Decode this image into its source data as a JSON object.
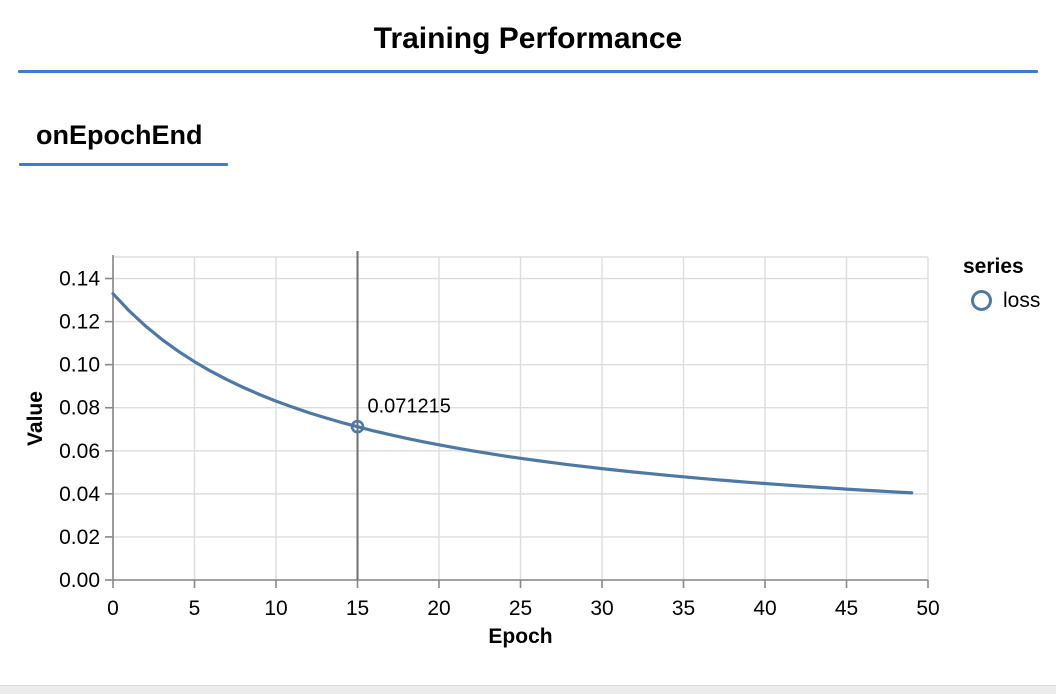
{
  "header": {
    "title": "Training Performance"
  },
  "section": {
    "heading": "onEpochEnd"
  },
  "colors": {
    "accent_rule": "#3d79d8",
    "line": "#4e79a7",
    "grid": "#dddddd",
    "axis": "#888888",
    "highlight_rule": "#6e6e6e",
    "text": "#000000"
  },
  "chart_data": {
    "type": "line",
    "title": "onEpochEnd",
    "xlabel": "Epoch",
    "ylabel": "Value",
    "xlim": [
      0,
      50
    ],
    "ylim": [
      0,
      0.15
    ],
    "xticks": [
      0,
      5,
      10,
      15,
      20,
      25,
      30,
      35,
      40,
      45,
      50
    ],
    "xtick_labels": [
      "0",
      "5",
      "10",
      "15",
      "20",
      "25",
      "30",
      "35",
      "40",
      "45",
      "50"
    ],
    "yticks": [
      0,
      0.02,
      0.04,
      0.06,
      0.08,
      0.1,
      0.12,
      0.14
    ],
    "ytick_labels": [
      "0.00",
      "0.02",
      "0.04",
      "0.06",
      "0.08",
      "0.10",
      "0.12",
      "0.14"
    ],
    "grid": true,
    "legend": {
      "title": "series",
      "position": "right",
      "items": [
        {
          "label": "loss",
          "marker": "circle"
        }
      ]
    },
    "series": [
      {
        "name": "loss",
        "x": [
          0,
          1,
          2,
          3,
          4,
          5,
          6,
          7,
          8,
          9,
          10,
          11,
          12,
          13,
          14,
          15,
          16,
          17,
          18,
          19,
          20,
          21,
          22,
          23,
          24,
          25,
          26,
          27,
          28,
          29,
          30,
          31,
          32,
          33,
          34,
          35,
          36,
          37,
          38,
          39,
          40,
          41,
          42,
          43,
          44,
          45,
          46,
          47,
          48,
          49
        ],
        "y": [
          0.132973,
          0.124941,
          0.117929,
          0.111754,
          0.106275,
          0.10138,
          0.096981,
          0.093006,
          0.089397,
          0.086104,
          0.083089,
          0.080318,
          0.077762,
          0.075397,
          0.073203,
          0.071215,
          0.069256,
          0.067476,
          0.065807,
          0.06424,
          0.062767,
          0.061378,
          0.060066,
          0.058827,
          0.057652,
          0.056539,
          0.055481,
          0.054475,
          0.053518,
          0.052605,
          0.051734,
          0.050902,
          0.050107,
          0.049345,
          0.048615,
          0.047915,
          0.047244,
          0.046599,
          0.045978,
          0.045382,
          0.044807,
          0.044253,
          0.04372,
          0.043205,
          0.042708,
          0.042228,
          0.041764,
          0.041315,
          0.040881,
          0.04046
        ]
      }
    ],
    "highlight": {
      "x": 15,
      "y": 0.071215,
      "label": "0.071215"
    }
  }
}
